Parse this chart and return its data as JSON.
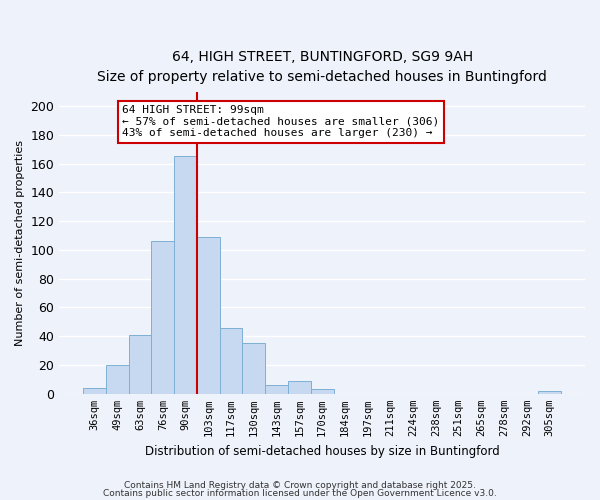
{
  "title": "64, HIGH STREET, BUNTINGFORD, SG9 9AH",
  "subtitle": "Size of property relative to semi-detached houses in Buntingford",
  "xlabel": "Distribution of semi-detached houses by size in Buntingford",
  "ylabel": "Number of semi-detached properties",
  "bin_labels": [
    "36sqm",
    "49sqm",
    "63sqm",
    "76sqm",
    "90sqm",
    "103sqm",
    "117sqm",
    "130sqm",
    "143sqm",
    "157sqm",
    "170sqm",
    "184sqm",
    "197sqm",
    "211sqm",
    "224sqm",
    "238sqm",
    "251sqm",
    "265sqm",
    "278sqm",
    "292sqm",
    "305sqm"
  ],
  "bar_heights": [
    4,
    20,
    41,
    106,
    165,
    109,
    46,
    35,
    6,
    9,
    3,
    0,
    0,
    0,
    0,
    0,
    0,
    0,
    0,
    0,
    2
  ],
  "bar_color": "#c6d9f0",
  "bar_edge_color": "#7eb0d4",
  "highlight_line_color": "#cc0000",
  "annotation_line1": "64 HIGH STREET: 99sqm",
  "annotation_line2": "← 57% of semi-detached houses are smaller (306)",
  "annotation_line3": "43% of semi-detached houses are larger (230) →",
  "ylim": [
    0,
    210
  ],
  "yticks": [
    0,
    20,
    40,
    60,
    80,
    100,
    120,
    140,
    160,
    180,
    200
  ],
  "footer1": "Contains HM Land Registry data © Crown copyright and database right 2025.",
  "footer2": "Contains public sector information licensed under the Open Government Licence v3.0.",
  "bg_color": "#eef2fb",
  "grid_color": "#ffffff"
}
